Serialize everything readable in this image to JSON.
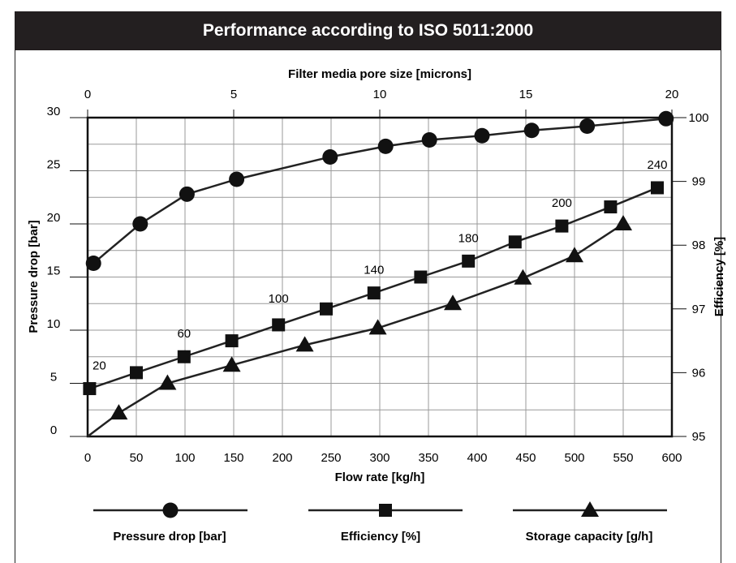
{
  "header": {
    "title": "Performance according to ISO 5011:2000"
  },
  "chart_data": {
    "type": "line",
    "title": "Performance according to ISO 5011:2000",
    "xlabel": "Flow rate [kg/h]",
    "x2label": "Filter media pore size [microns]",
    "ylabel": "Pressure drop [bar]",
    "y2label": "Efficiency [%]",
    "xlim": [
      0,
      600
    ],
    "x2lim": [
      0,
      20
    ],
    "ylim": [
      0,
      30
    ],
    "y2lim": [
      95,
      100
    ],
    "x_ticks": [
      0,
      50,
      100,
      150,
      200,
      250,
      300,
      350,
      400,
      450,
      500,
      550,
      600
    ],
    "x2_ticks": [
      0,
      5,
      10,
      15,
      20
    ],
    "y_ticks": [
      0,
      5,
      10,
      15,
      20,
      25,
      30
    ],
    "y2_ticks": [
      95,
      96,
      97,
      98,
      99,
      100
    ],
    "grid": true,
    "series": [
      {
        "name": "Pressure drop [bar]",
        "marker": "circle",
        "axis": "x2-y",
        "x": [
          0.2,
          1.8,
          3.4,
          5.1,
          8.3,
          10.2,
          11.7,
          13.5,
          15.2,
          17.1,
          19.8
        ],
        "y": [
          16.3,
          20.0,
          22.8,
          24.2,
          26.3,
          27.3,
          27.9,
          28.3,
          28.8,
          29.2,
          29.9
        ]
      },
      {
        "name": "Efficiency [%]",
        "marker": "square",
        "axis": "x-y2",
        "x": [
          2,
          50,
          99,
          148,
          196,
          245,
          294,
          342,
          391,
          439,
          487,
          537,
          585
        ],
        "y": [
          95.75,
          96.0,
          96.25,
          96.5,
          96.75,
          97.0,
          97.25,
          97.5,
          97.75,
          98.05,
          98.3,
          98.6,
          98.9
        ]
      },
      {
        "name": "Storage capacity [g/h]",
        "marker": "triangle",
        "axis": "x-y",
        "x": [
          0,
          32,
          82,
          148,
          223,
          298,
          375,
          447,
          500,
          550
        ],
        "y": [
          0,
          2.2,
          5.0,
          6.7,
          8.6,
          10.2,
          12.5,
          14.9,
          17.0,
          20.0
        ]
      }
    ],
    "annotations": [
      {
        "text": "20",
        "x": 12,
        "y2": 96.05
      },
      {
        "text": "60",
        "x": 99,
        "y2": 96.55
      },
      {
        "text": "100",
        "x": 196,
        "y2": 97.1
      },
      {
        "text": "140",
        "x": 294,
        "y2": 97.55
      },
      {
        "text": "180",
        "x": 391,
        "y2": 98.05
      },
      {
        "text": "200",
        "x": 487,
        "y2": 98.6
      },
      {
        "text": "240",
        "x": 585,
        "y2": 99.2
      }
    ],
    "legend": {
      "placement": "bottom",
      "items": [
        {
          "label": "Pressure drop [bar]",
          "marker": "circle"
        },
        {
          "label": "Efficiency [%]",
          "marker": "square"
        },
        {
          "label": "Storage capacity [g/h]",
          "marker": "triangle"
        }
      ]
    }
  }
}
